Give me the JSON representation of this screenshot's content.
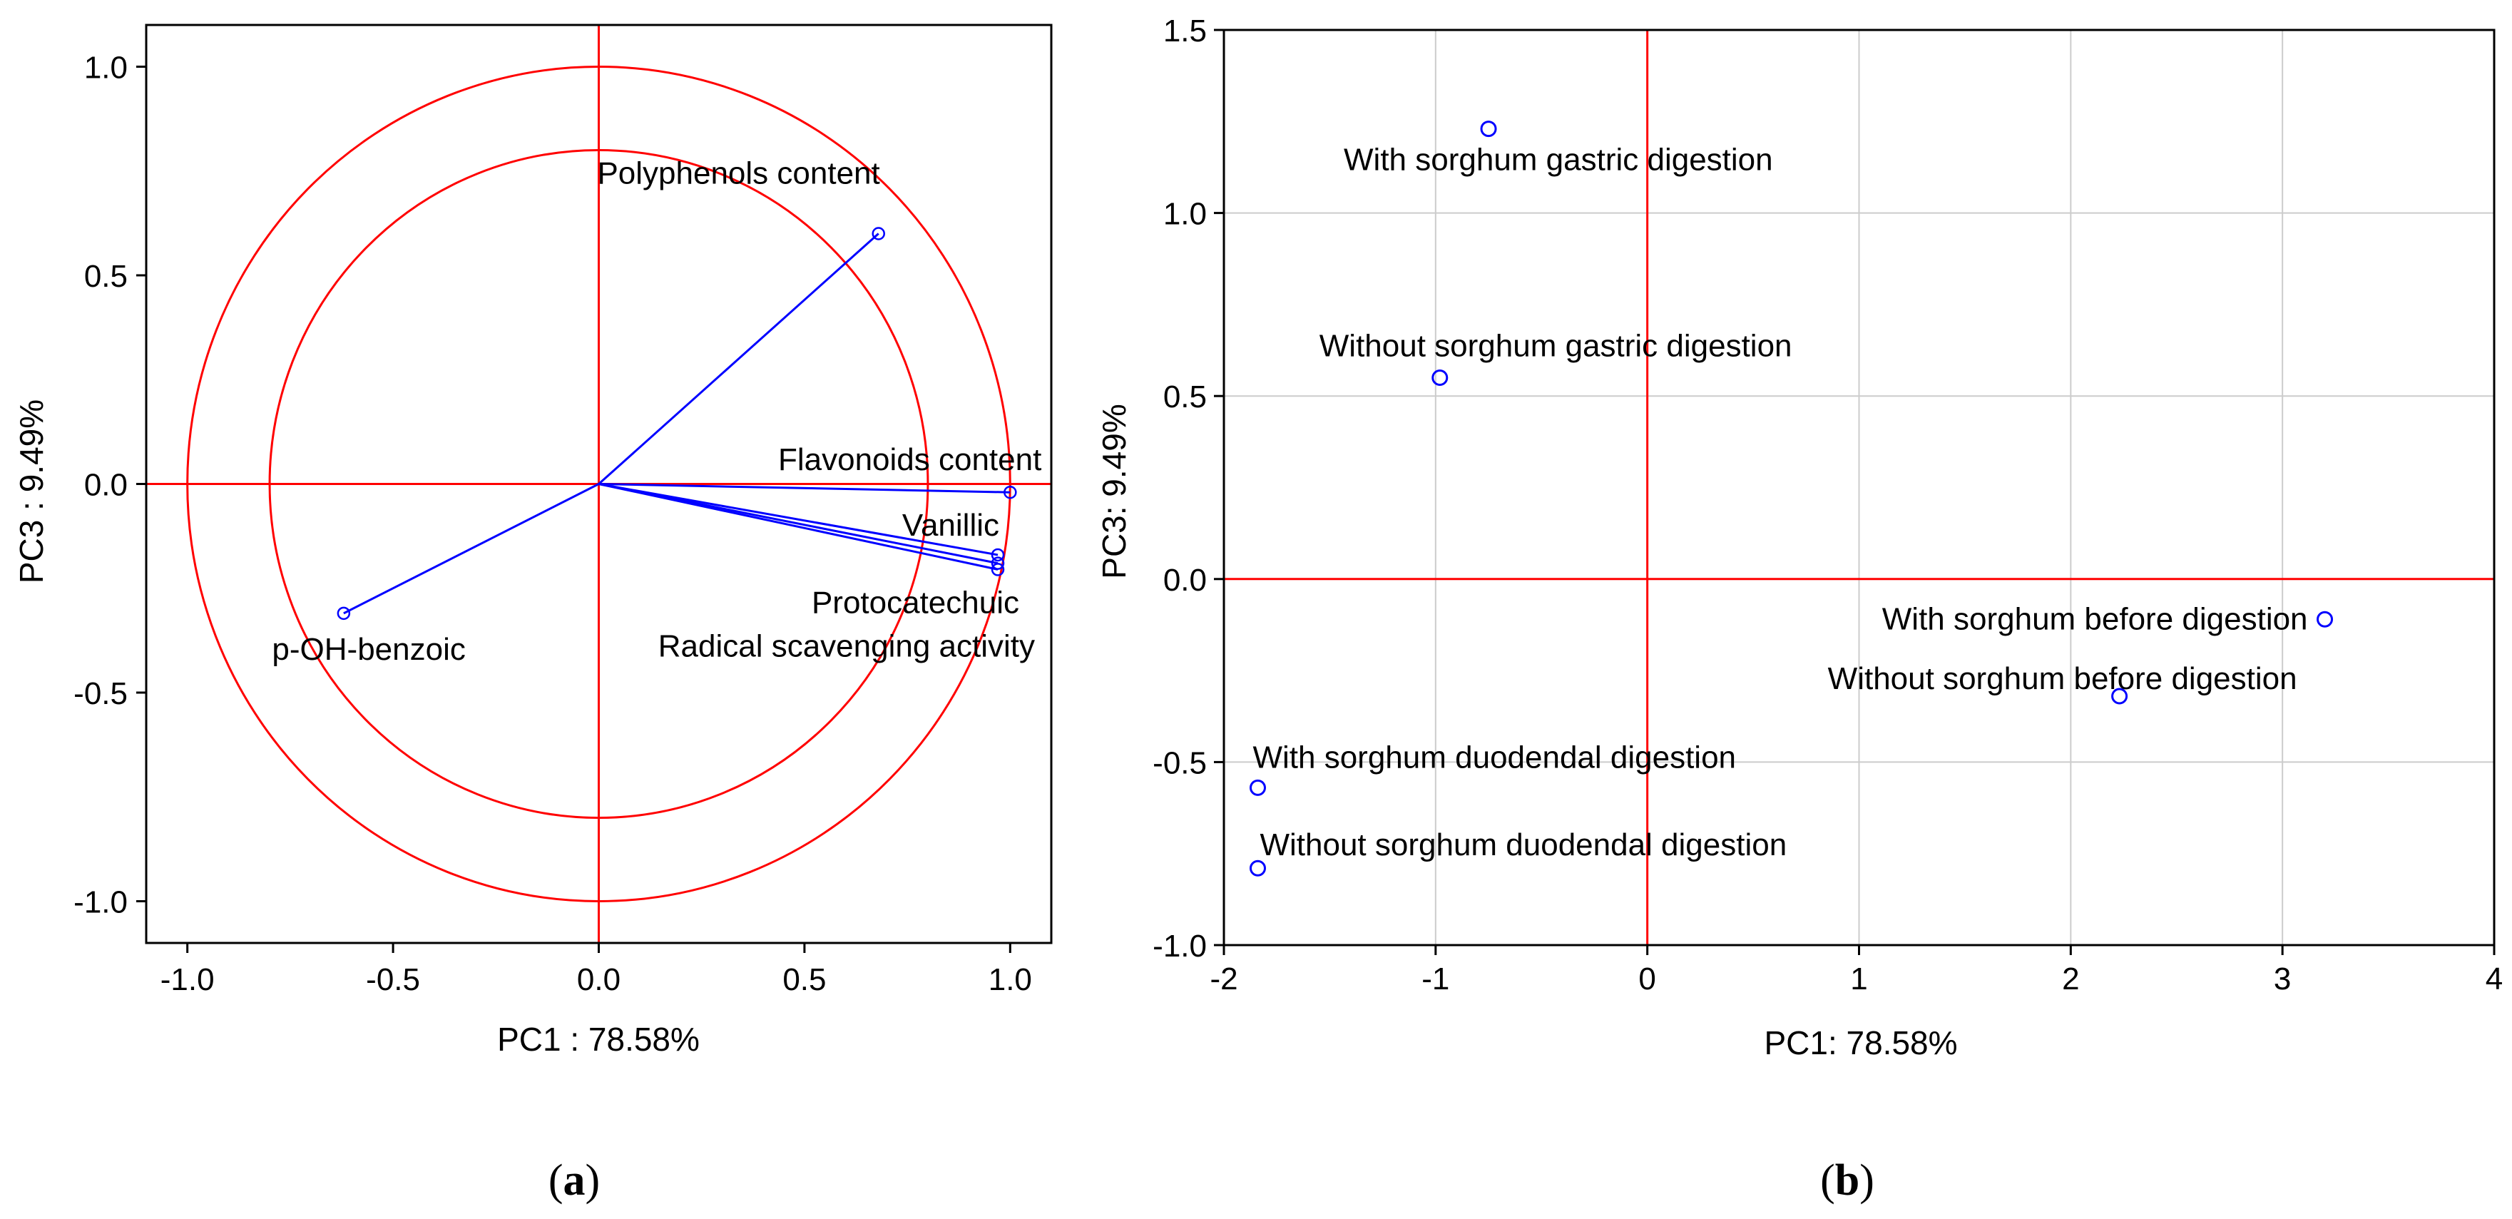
{
  "colors": {
    "reference": "#ff0000",
    "data": "#0000ff",
    "grid": "#cccccc",
    "frame": "#000000"
  },
  "chart_data": [
    {
      "type": "scatter",
      "subtype": "pca-correlation-circle",
      "caption_letter": "a",
      "xlabel": "PC1 : 78.58%",
      "ylabel": "PC3 :  9.49%",
      "xlim": [
        -1.1,
        1.1
      ],
      "ylim": [
        -1.1,
        1.1
      ],
      "xticks": [
        -1.0,
        -0.5,
        0.0,
        0.5,
        1.0
      ],
      "xtick_labels": [
        "-1.0",
        "-0.5",
        "0.0",
        "0.5",
        "1.0"
      ],
      "yticks": [
        1.0,
        0.5,
        0.0,
        -0.5,
        -1.0
      ],
      "ytick_labels": [
        "1.0",
        "0.5",
        "0.0",
        "-0.5",
        "-1.0"
      ],
      "grid": false,
      "circle_radii": [
        1.0,
        0.8
      ],
      "points": [
        {
          "name": "Polyphenols content",
          "x": 0.68,
          "y": 0.6
        },
        {
          "name": "Flavonoids content",
          "x": 1.0,
          "y": -0.02
        },
        {
          "name": "Vanillic",
          "x": 0.97,
          "y": -0.17
        },
        {
          "name": "Protocatechuic",
          "x": 0.97,
          "y": -0.19
        },
        {
          "name": "Radical scavenging activity",
          "x": 0.97,
          "y": -0.205
        },
        {
          "name": "p-OH-benzoic",
          "x": -0.62,
          "y": -0.31
        }
      ]
    },
    {
      "type": "scatter",
      "subtype": "pca-scores",
      "caption_letter": "b",
      "xlabel": "PC1: 78.58%",
      "ylabel": "PC3:  9.49%",
      "xlim": [
        -2,
        4
      ],
      "ylim": [
        -1.0,
        1.5
      ],
      "xticks": [
        -2,
        -1,
        0,
        1,
        2,
        3,
        4
      ],
      "xtick_labels": [
        "-2",
        "-1",
        "0",
        "1",
        "2",
        "3",
        "4"
      ],
      "yticks": [
        1.5,
        1.0,
        0.5,
        0.0,
        -0.5,
        -1.0
      ],
      "ytick_labels": [
        "1.5",
        "1.0",
        "0.5",
        "0.0",
        "-0.5",
        "-1.0"
      ],
      "grid": true,
      "points": [
        {
          "name": "With sorghum gastric digestion",
          "x": -0.75,
          "y": 1.23
        },
        {
          "name": "Without sorghum gastric digestion",
          "x": -0.98,
          "y": 0.55
        },
        {
          "name": "With sorghum before digestion",
          "x": 3.2,
          "y": -0.11
        },
        {
          "name": "Without  sorghum before digestion",
          "x": 2.23,
          "y": -0.32
        },
        {
          "name": "With sorghum duodendal digestion",
          "x": -1.84,
          "y": -0.57
        },
        {
          "name": "Without sorghum duodendal digestion",
          "x": -1.84,
          "y": -0.79
        }
      ]
    }
  ]
}
